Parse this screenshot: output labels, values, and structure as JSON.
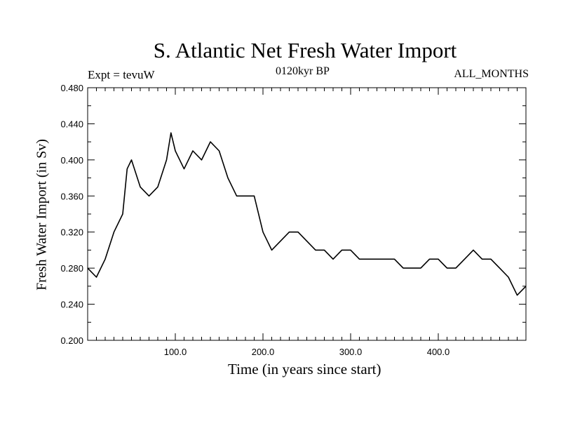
{
  "chart_data": {
    "type": "line",
    "title": "S. Atlantic Net Fresh Water Import",
    "subtitle": "0120kyr BP",
    "left_label": "Expt = tevuW",
    "right_label": "ALL_MONTHS",
    "xlabel": "Time (in years since start)",
    "ylabel": "Fresh Water Import (in Sv)",
    "xlim": [
      0,
      500
    ],
    "ylim": [
      0.2,
      0.48
    ],
    "x_ticks": [
      100,
      200,
      300,
      400
    ],
    "x_tick_labels": [
      "100.0",
      "200.0",
      "300.0",
      "400.0"
    ],
    "y_ticks": [
      0.2,
      0.24,
      0.28,
      0.32,
      0.36,
      0.4,
      0.44,
      0.48
    ],
    "y_tick_labels": [
      "0.200",
      "0.240",
      "0.280",
      "0.320",
      "0.360",
      "0.400",
      "0.440",
      "0.480"
    ],
    "series": [
      {
        "name": "Net Fresh Water Import",
        "color": "#000000",
        "x": [
          0,
          10,
          20,
          30,
          40,
          45,
          50,
          60,
          70,
          80,
          90,
          95,
          100,
          110,
          120,
          130,
          140,
          150,
          160,
          170,
          180,
          190,
          200,
          210,
          220,
          230,
          240,
          250,
          260,
          270,
          280,
          290,
          300,
          310,
          320,
          330,
          340,
          350,
          360,
          370,
          380,
          390,
          400,
          410,
          420,
          430,
          440,
          450,
          460,
          470,
          480,
          490,
          500
        ],
        "y": [
          0.28,
          0.27,
          0.29,
          0.32,
          0.34,
          0.39,
          0.4,
          0.37,
          0.36,
          0.37,
          0.4,
          0.43,
          0.41,
          0.39,
          0.41,
          0.4,
          0.42,
          0.41,
          0.38,
          0.36,
          0.36,
          0.36,
          0.32,
          0.3,
          0.31,
          0.32,
          0.32,
          0.31,
          0.3,
          0.3,
          0.29,
          0.3,
          0.3,
          0.29,
          0.29,
          0.29,
          0.29,
          0.29,
          0.28,
          0.28,
          0.28,
          0.29,
          0.29,
          0.28,
          0.28,
          0.29,
          0.3,
          0.29,
          0.29,
          0.28,
          0.27,
          0.25,
          0.26
        ]
      }
    ]
  }
}
